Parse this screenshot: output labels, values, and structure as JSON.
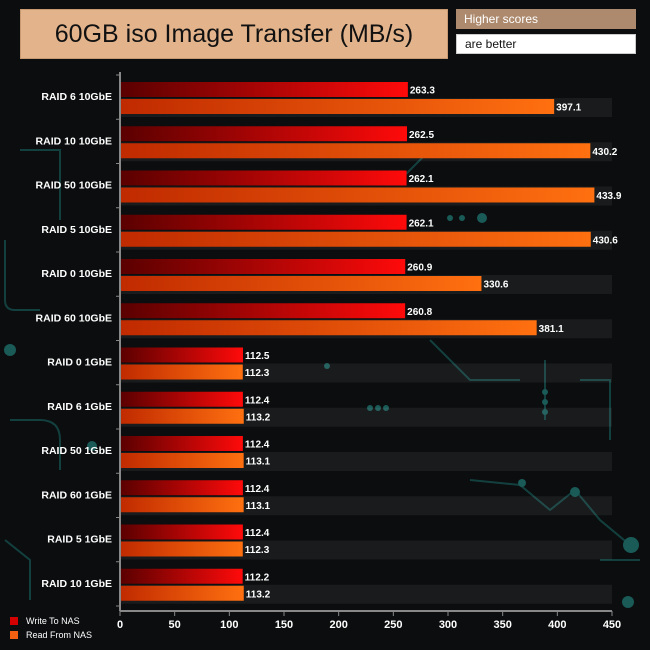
{
  "header": {
    "title": "60GB iso Image Transfer (MB/s)",
    "note_line1": "Higher scores",
    "note_line2": "are better"
  },
  "colors": {
    "write": "#d40000",
    "read": "#f06010",
    "background": "#0b0d0e",
    "title_bg": "#e3b48c"
  },
  "chart_data": {
    "type": "bar",
    "orientation": "horizontal",
    "categories": [
      "RAID 6 10GbE",
      "RAID 10 10GbE",
      "RAID 50 10GbE",
      "RAID 5 10GbE",
      "RAID 0 10GbE",
      "RAID 60 10GbE",
      "RAID 0 1GbE",
      "RAID 6 1GbE",
      "RAID 50 1GbE",
      "RAID 60 1GbE",
      "RAID 5 1GbE",
      "RAID 10 1GbE"
    ],
    "series": [
      {
        "name": "Write To NAS",
        "values": [
          263.3,
          262.5,
          262.1,
          262.1,
          260.9,
          260.8,
          112.5,
          112.4,
          112.4,
          112.4,
          112.4,
          112.2
        ]
      },
      {
        "name": "Read From NAS",
        "values": [
          397.1,
          430.2,
          433.9,
          430.6,
          330.6,
          381.1,
          112.3,
          113.2,
          113.1,
          113.1,
          112.3,
          113.2
        ]
      }
    ],
    "xlim": [
      0,
      450
    ],
    "xticks": [
      "0",
      "50",
      "100",
      "150",
      "200",
      "250",
      "300",
      "350",
      "400",
      "450"
    ],
    "value_labels": [
      [
        "263.3",
        "397.1"
      ],
      [
        "262.5",
        "430.2"
      ],
      [
        "262.1",
        "433.9"
      ],
      [
        "262.1",
        "430.6"
      ],
      [
        "260.9",
        "330.6"
      ],
      [
        "260.8",
        "381.1"
      ],
      [
        "112.5",
        "112.3"
      ],
      [
        "112.4",
        "113.2"
      ],
      [
        "112.4",
        "113.1"
      ],
      [
        "112.4",
        "113.1"
      ],
      [
        "112.4",
        "112.3"
      ],
      [
        "112.2",
        "113.2"
      ]
    ],
    "legend": [
      "Write To NAS",
      "Read From NAS"
    ],
    "legend_position": "bottom-left",
    "grid": false
  }
}
